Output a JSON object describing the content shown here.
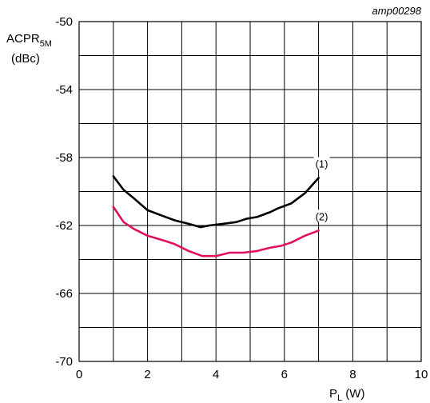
{
  "chart_data": {
    "type": "line",
    "figure_code": "amp00298",
    "ylabel": {
      "main": "ACPR",
      "sub": "5M",
      "unit": "(dBc)"
    },
    "xlabel": {
      "main": "P",
      "sub": "L",
      "unit": " (W)"
    },
    "xlim": [
      0,
      10
    ],
    "ylim": [
      -70,
      -50
    ],
    "x_major_ticks": [
      0,
      2,
      4,
      6,
      8,
      10
    ],
    "x_tick_labels": [
      "0",
      "2",
      "4",
      "6",
      "8",
      "10"
    ],
    "y_major_ticks": [
      -70,
      -66,
      -62,
      -58,
      -54,
      -50
    ],
    "y_tick_labels": [
      "-70",
      "-66",
      "-62",
      "-58",
      "-54",
      "-50"
    ],
    "x_grid_step": 1,
    "y_grid_step": 2,
    "grid": true,
    "series": [
      {
        "name": "(1)",
        "color": "#000000",
        "x": [
          1.0,
          1.3,
          1.6,
          2.0,
          2.4,
          2.8,
          3.2,
          3.55,
          3.8,
          4.2,
          4.6,
          4.9,
          5.2,
          5.6,
          5.8,
          6.2,
          6.6,
          7.0
        ],
        "y": [
          -59.1,
          -59.9,
          -60.4,
          -61.1,
          -61.4,
          -61.7,
          -61.9,
          -62.1,
          -62.0,
          -61.9,
          -61.8,
          -61.6,
          -61.5,
          -61.2,
          -61.0,
          -60.7,
          -60.1,
          -59.2
        ]
      },
      {
        "name": "(2)",
        "color": "#e0115f",
        "x": [
          1.0,
          1.3,
          1.6,
          2.0,
          2.5,
          2.8,
          3.2,
          3.6,
          4.0,
          4.4,
          4.8,
          5.2,
          5.6,
          5.9,
          6.2,
          6.6,
          7.0
        ],
        "y": [
          -60.9,
          -61.8,
          -62.2,
          -62.6,
          -62.9,
          -63.1,
          -63.5,
          -63.8,
          -63.8,
          -63.6,
          -63.6,
          -63.5,
          -63.3,
          -63.2,
          -63.0,
          -62.6,
          -62.3
        ]
      }
    ]
  }
}
